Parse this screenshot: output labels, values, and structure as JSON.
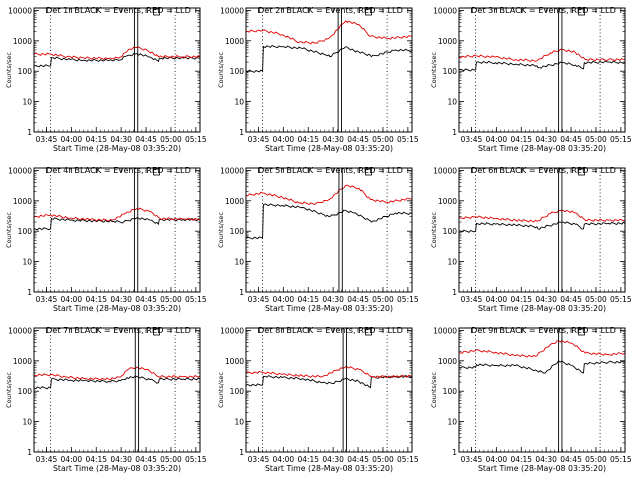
{
  "colors": {
    "events": "#000000",
    "lld": "#e00000",
    "axis": "#000000",
    "background": "#ffffff"
  },
  "common": {
    "ylabel": "Counts/sec",
    "xticks": [
      "03:45",
      "04:00",
      "04:15",
      "04:30",
      "04:45",
      "05:00",
      "05:15"
    ],
    "yticks": [
      "1",
      "10",
      "100",
      "1000",
      "10000"
    ]
  },
  "chart_data": [
    {
      "type": "line",
      "title": "Det 1r BLACK = Events, RED = LLD",
      "xlabel": "Start Time (28-May-08 03:35:20)",
      "ylabel": "Counts/sec",
      "xlim_minutes": [
        0,
        100
      ],
      "ylim": [
        1,
        12000
      ],
      "yscale": "log",
      "dotted_lines_minutes": [
        10,
        85
      ],
      "box_minutes": [
        60.5,
        62.5
      ],
      "series": [
        {
          "name": "Events",
          "color": "black",
          "x": [
            0,
            10,
            10.5,
            22,
            30,
            45,
            52,
            56,
            62,
            70,
            75,
            75.5,
            90,
            100
          ],
          "y": [
            150,
            150,
            280,
            240,
            230,
            225,
            235,
            320,
            380,
            290,
            210,
            270,
            270,
            270
          ]
        },
        {
          "name": "LLD",
          "color": "red",
          "x": [
            0,
            10,
            20,
            30,
            45,
            52,
            57,
            62,
            68,
            75,
            90,
            100
          ],
          "y": [
            360,
            365,
            300,
            275,
            260,
            290,
            520,
            600,
            500,
            300,
            300,
            300
          ]
        }
      ]
    },
    {
      "type": "line",
      "title": "Det 2r BLACK = Events, RED = LLD",
      "xlabel": "Start Time (28-May-08 03:35:20)",
      "ylabel": "Counts/sec",
      "xlim_minutes": [
        0,
        100
      ],
      "ylim": [
        1,
        12000
      ],
      "yscale": "log",
      "dotted_lines_minutes": [
        10,
        85
      ],
      "box_minutes": [
        55.5,
        57.5
      ],
      "series": [
        {
          "name": "Events",
          "color": "black",
          "x": [
            0,
            10,
            10.5,
            22,
            34,
            47,
            50,
            50.5,
            60,
            65,
            75,
            75.5,
            90,
            100
          ],
          "y": [
            100,
            100,
            650,
            640,
            560,
            360,
            340,
            300,
            640,
            480,
            330,
            300,
            500,
            480
          ]
        },
        {
          "name": "LLD",
          "color": "red",
          "x": [
            0,
            10,
            22,
            32,
            42,
            50,
            60,
            68,
            75,
            85,
            100
          ],
          "y": [
            2000,
            2200,
            1600,
            900,
            850,
            1200,
            4500,
            3400,
            1400,
            1200,
            1400
          ]
        }
      ]
    },
    {
      "type": "line",
      "title": "Det 3r BLACK = Events, RED = LLD",
      "xlabel": "Start Time (28-May-08 03:35:20)",
      "ylabel": "Counts/sec",
      "xlim_minutes": [
        0,
        100
      ],
      "ylim": [
        1,
        12000
      ],
      "yscale": "log",
      "dotted_lines_minutes": [
        10,
        85
      ],
      "box_minutes": [
        60,
        62
      ],
      "series": [
        {
          "name": "Events",
          "color": "black",
          "x": [
            0,
            10,
            10.5,
            22,
            34,
            47,
            47.5,
            62,
            70,
            75,
            75.5,
            90,
            100
          ],
          "y": [
            110,
            110,
            200,
            190,
            170,
            150,
            130,
            190,
            160,
            120,
            190,
            200,
            190
          ]
        },
        {
          "name": "LLD",
          "color": "red",
          "x": [
            0,
            10,
            22,
            34,
            47,
            55,
            62,
            70,
            76,
            90,
            100
          ],
          "y": [
            290,
            320,
            290,
            240,
            220,
            400,
            520,
            420,
            240,
            240,
            240
          ]
        }
      ]
    },
    {
      "type": "line",
      "title": "Det 4r BLACK = Events, RED = LLD",
      "xlabel": "Start Time (28-May-08 03:35:20)",
      "ylabel": "Counts/sec",
      "xlim_minutes": [
        0,
        100
      ],
      "ylim": [
        1,
        12000
      ],
      "yscale": "log",
      "dotted_lines_minutes": [
        10,
        85
      ],
      "box_minutes": [
        60.5,
        62.5
      ],
      "series": [
        {
          "name": "Events",
          "color": "black",
          "x": [
            0,
            10,
            10.5,
            22,
            34,
            47,
            54,
            62,
            70,
            75,
            75.5,
            90,
            100
          ],
          "y": [
            120,
            120,
            260,
            230,
            220,
            210,
            200,
            280,
            230,
            170,
            240,
            240,
            240
          ]
        },
        {
          "name": "LLD",
          "color": "red",
          "x": [
            0,
            10,
            22,
            34,
            47,
            55,
            62,
            70,
            76,
            90,
            100
          ],
          "y": [
            300,
            340,
            270,
            240,
            230,
            380,
            560,
            450,
            260,
            250,
            250
          ]
        }
      ]
    },
    {
      "type": "line",
      "title": "Det 5r BLACK = Events, RED = LLD",
      "xlabel": "Start Time (28-May-08 03:35:20)",
      "ylabel": "Counts/sec",
      "xlim_minutes": [
        0,
        100
      ],
      "ylim": [
        1,
        12000
      ],
      "yscale": "log",
      "dotted_lines_minutes": [
        10,
        85
      ],
      "box_minutes": [
        56,
        58
      ],
      "series": [
        {
          "name": "Events",
          "color": "black",
          "x": [
            0,
            10,
            10.5,
            22,
            34,
            47,
            50,
            50.5,
            60,
            65,
            75,
            75.5,
            90,
            100
          ],
          "y": [
            60,
            60,
            750,
            700,
            600,
            350,
            300,
            300,
            480,
            400,
            220,
            200,
            400,
            380
          ]
        },
        {
          "name": "LLD",
          "color": "red",
          "x": [
            0,
            10,
            22,
            32,
            42,
            50,
            60,
            68,
            75,
            85,
            100
          ],
          "y": [
            1500,
            1800,
            1300,
            850,
            800,
            1100,
            3200,
            2600,
            1100,
            900,
            1200
          ]
        }
      ]
    },
    {
      "type": "line",
      "title": "Det 6r BLACK = Events, RED = LLD",
      "xlabel": "Start Time (28-May-08 03:35:20)",
      "ylabel": "Counts/sec",
      "xlim_minutes": [
        0,
        100
      ],
      "ylim": [
        1,
        12000
      ],
      "yscale": "log",
      "dotted_lines_minutes": [
        10,
        85
      ],
      "box_minutes": [
        60,
        62
      ],
      "series": [
        {
          "name": "Events",
          "color": "black",
          "x": [
            0,
            10,
            10.5,
            22,
            34,
            47,
            47.5,
            62,
            70,
            75,
            75.5,
            90,
            100
          ],
          "y": [
            100,
            100,
            180,
            170,
            160,
            140,
            120,
            200,
            170,
            120,
            170,
            180,
            180
          ]
        },
        {
          "name": "LLD",
          "color": "red",
          "x": [
            0,
            10,
            22,
            34,
            47,
            55,
            62,
            70,
            76,
            90,
            100
          ],
          "y": [
            260,
            300,
            260,
            230,
            210,
            380,
            500,
            400,
            230,
            230,
            230
          ]
        }
      ]
    },
    {
      "type": "line",
      "title": "Det 7r BLACK = Events, RED = LLD",
      "xlabel": "Start Time (28-May-08 03:35:20)",
      "ylabel": "Counts/sec",
      "xlim_minutes": [
        0,
        100
      ],
      "ylim": [
        1,
        12000
      ],
      "yscale": "log",
      "dotted_lines_minutes": [
        10,
        85
      ],
      "box_minutes": [
        61,
        63
      ],
      "series": [
        {
          "name": "Events",
          "color": "black",
          "x": [
            0,
            10,
            10.5,
            22,
            30,
            45,
            52,
            56,
            62,
            70,
            75,
            75.5,
            90,
            100
          ],
          "y": [
            130,
            130,
            250,
            230,
            220,
            210,
            220,
            280,
            300,
            240,
            190,
            250,
            250,
            250
          ]
        },
        {
          "name": "LLD",
          "color": "red",
          "x": [
            0,
            10,
            20,
            30,
            45,
            52,
            57,
            62,
            68,
            75,
            90,
            100
          ],
          "y": [
            340,
            350,
            290,
            260,
            250,
            290,
            530,
            620,
            520,
            300,
            300,
            300
          ]
        }
      ]
    },
    {
      "type": "line",
      "title": "Det 8r BLACK = Events, RED = LLD",
      "xlabel": "Start Time (28-May-08 03:35:20)",
      "ylabel": "Counts/sec",
      "xlim_minutes": [
        0,
        100
      ],
      "ylim": [
        1,
        12000
      ],
      "yscale": "log",
      "dotted_lines_minutes": [
        10,
        85
      ],
      "box_minutes": [
        58.5,
        60.5
      ],
      "series": [
        {
          "name": "Events",
          "color": "black",
          "x": [
            0,
            10,
            10.5,
            22,
            34,
            46,
            52,
            60,
            68,
            75,
            75.5,
            90,
            100
          ],
          "y": [
            160,
            160,
            310,
            280,
            260,
            190,
            180,
            260,
            210,
            130,
            280,
            300,
            300
          ]
        },
        {
          "name": "LLD",
          "color": "red",
          "x": [
            0,
            10,
            22,
            34,
            46,
            55,
            60,
            68,
            76,
            90,
            100
          ],
          "y": [
            400,
            420,
            360,
            320,
            300,
            500,
            640,
            520,
            300,
            300,
            320
          ]
        }
      ]
    },
    {
      "type": "line",
      "title": "Det 9r BLACK = Events, RED = LLD",
      "xlabel": "Start Time (28-May-08 03:35:20)",
      "ylabel": "Counts/sec",
      "xlim_minutes": [
        0,
        100
      ],
      "ylim": [
        1,
        12000
      ],
      "yscale": "log",
      "dotted_lines_minutes": [
        10,
        85
      ],
      "box_minutes": [
        60,
        62
      ],
      "series": [
        {
          "name": "Events",
          "color": "black",
          "x": [
            0,
            10,
            10.5,
            22,
            34,
            46,
            52,
            60,
            68,
            75,
            75.5,
            90,
            100
          ],
          "y": [
            600,
            600,
            750,
            700,
            700,
            500,
            400,
            1000,
            700,
            400,
            800,
            900,
            900
          ]
        },
        {
          "name": "LLD",
          "color": "red",
          "x": [
            0,
            10,
            22,
            34,
            46,
            55,
            60,
            68,
            76,
            90,
            100
          ],
          "y": [
            1800,
            2200,
            1900,
            1500,
            1400,
            3400,
            4600,
            3800,
            1800,
            1600,
            1800
          ]
        }
      ]
    }
  ]
}
